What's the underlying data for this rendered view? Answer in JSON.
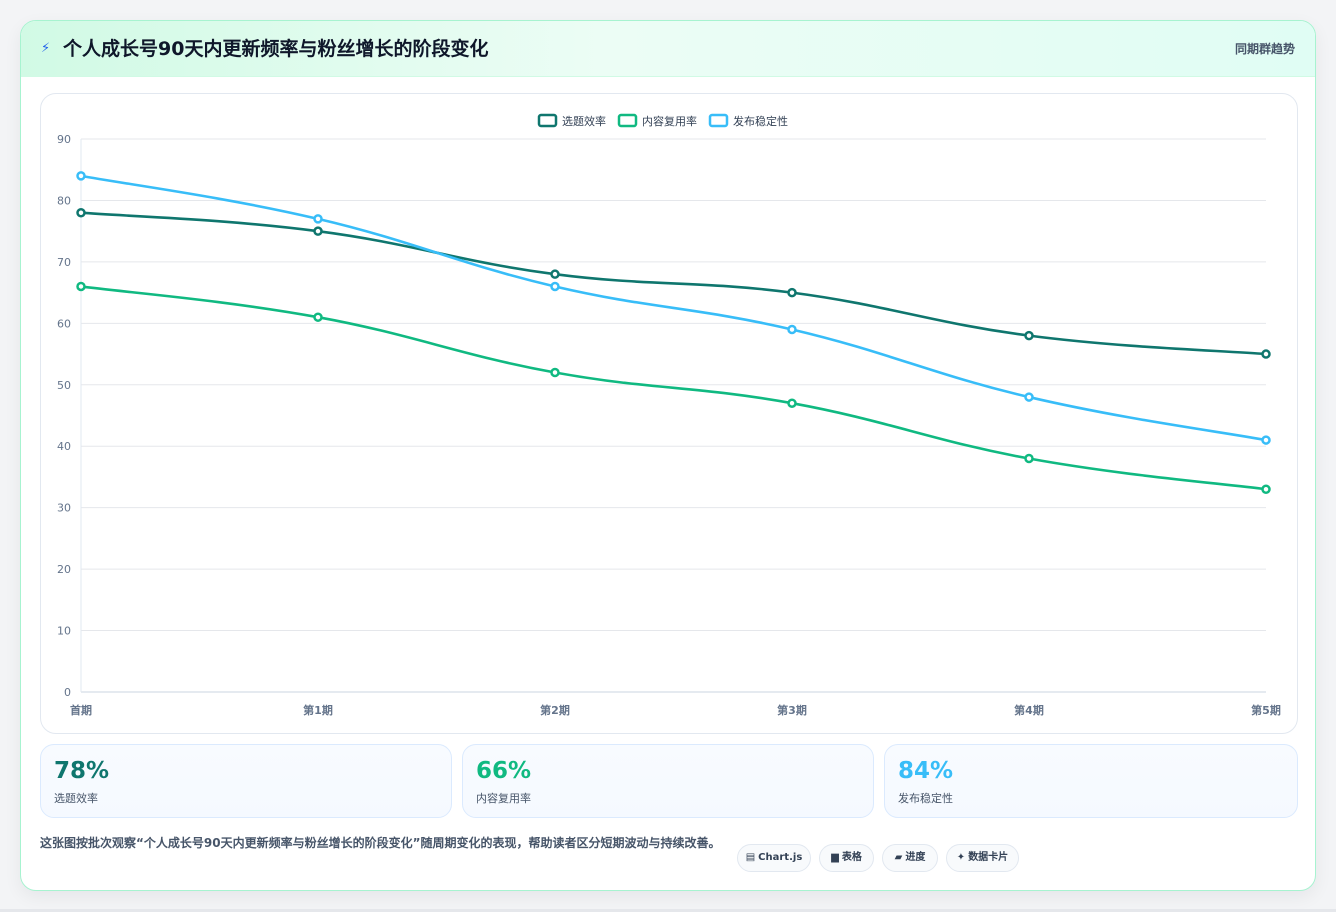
{
  "header": {
    "icon": "lightning-icon",
    "title": "个人成长号90天内更新频率与粉丝增长的阶段变化",
    "right_label": "同期群趋势"
  },
  "colors": {
    "series_1": "#0f766e",
    "series_2": "#10b981",
    "series_3": "#38bdf8",
    "grid": "#e5e7eb"
  },
  "chart_data": {
    "type": "line",
    "categories": [
      "首期",
      "第1期",
      "第2期",
      "第3期",
      "第4期",
      "第5期"
    ],
    "series": [
      {
        "name": "选题效率",
        "values": [
          78,
          75,
          68,
          65,
          58,
          55
        ],
        "color": "#0f766e"
      },
      {
        "name": "内容复用率",
        "values": [
          66,
          61,
          52,
          47,
          38,
          33
        ],
        "color": "#10b981"
      },
      {
        "name": "发布稳定性",
        "values": [
          84,
          77,
          66,
          59,
          48,
          41
        ],
        "color": "#38bdf8"
      }
    ],
    "ylim": [
      0,
      90
    ],
    "yticks": [
      0,
      10,
      20,
      30,
      40,
      50,
      60,
      70,
      80,
      90
    ],
    "grid": true,
    "legend": "top-center"
  },
  "stats": [
    {
      "value": "78%",
      "label": "选题效率",
      "color": "#0f766e"
    },
    {
      "value": "66%",
      "label": "内容复用率",
      "color": "#10b981"
    },
    {
      "value": "84%",
      "label": "发布稳定性",
      "color": "#38bdf8"
    }
  ],
  "description": "这张图按批次观察“个人成长号90天内更新频率与粉丝增长的阶段变化”随周期变化的表现，帮助读者区分短期波动与持续改善。",
  "tags": [
    {
      "icon": "chart-icon",
      "glyph": "▤",
      "label": "Chart.js"
    },
    {
      "icon": "table-icon",
      "glyph": "▆",
      "label": "表格"
    },
    {
      "icon": "progress-icon",
      "glyph": "▰",
      "label": "进度"
    },
    {
      "icon": "sparkle-icon",
      "glyph": "✦",
      "label": "数据卡片"
    }
  ]
}
